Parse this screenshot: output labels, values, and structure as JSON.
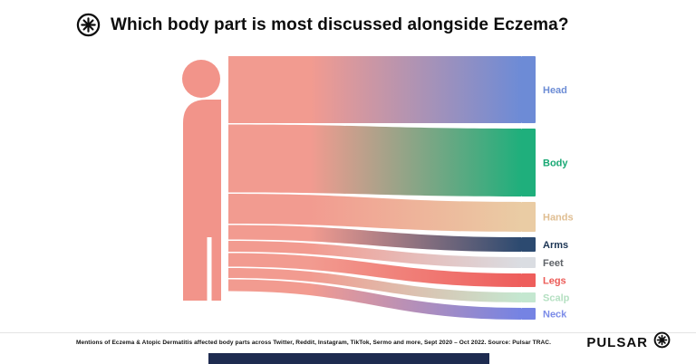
{
  "header": {
    "title": "Which body part is most discussed alongside Eczema?"
  },
  "icons": {
    "brand_mark": "asterisk-in-circle"
  },
  "chart_data": {
    "type": "sankey",
    "title": "Which body part is most discussed alongside Eczema?",
    "note": "Flow diagram from a human body silhouette to body-part categories; band thickness encodes relative mention volume. No numeric axis is shown, values are relative thicknesses estimated from the image.",
    "silhouette_color": "#F2948A",
    "flow_start_color": "#F29B90",
    "legend_position": "right",
    "grid": false,
    "categories": [
      {
        "label": "Head",
        "value": 74,
        "color": "#6D8BD6",
        "label_color": "#6C8CD5"
      },
      {
        "label": "Body",
        "value": 75,
        "color": "#1FAF7C",
        "label_color": "#17A873"
      },
      {
        "label": "Hands",
        "value": 33,
        "color": "#EACCA4",
        "label_color": "#E0BE92"
      },
      {
        "label": "Arms",
        "value": 16,
        "color": "#2C4A70",
        "label_color": "#1C3554"
      },
      {
        "label": "Feet",
        "value": 12,
        "color": "#DADDE2",
        "label_color": "#5F6368"
      },
      {
        "label": "Legs",
        "value": 15,
        "color": "#EE5E5C",
        "label_color": "#EC5B57"
      },
      {
        "label": "Scalp",
        "value": 11,
        "color": "#C4E7D0",
        "label_color": "#B5E0C2"
      },
      {
        "label": "Neck",
        "value": 13,
        "color": "#7583E3",
        "label_color": "#7B8BE8"
      }
    ]
  },
  "footer": {
    "caption": "Mentions of Eczema & Atopic Dermatitis affected body parts across Twitter, Reddit, Instagram, TikTok, Sermo and more, Sept 2020 – Oct 2022. Source: Pulsar TRAC.",
    "brand": "PULSAR"
  }
}
